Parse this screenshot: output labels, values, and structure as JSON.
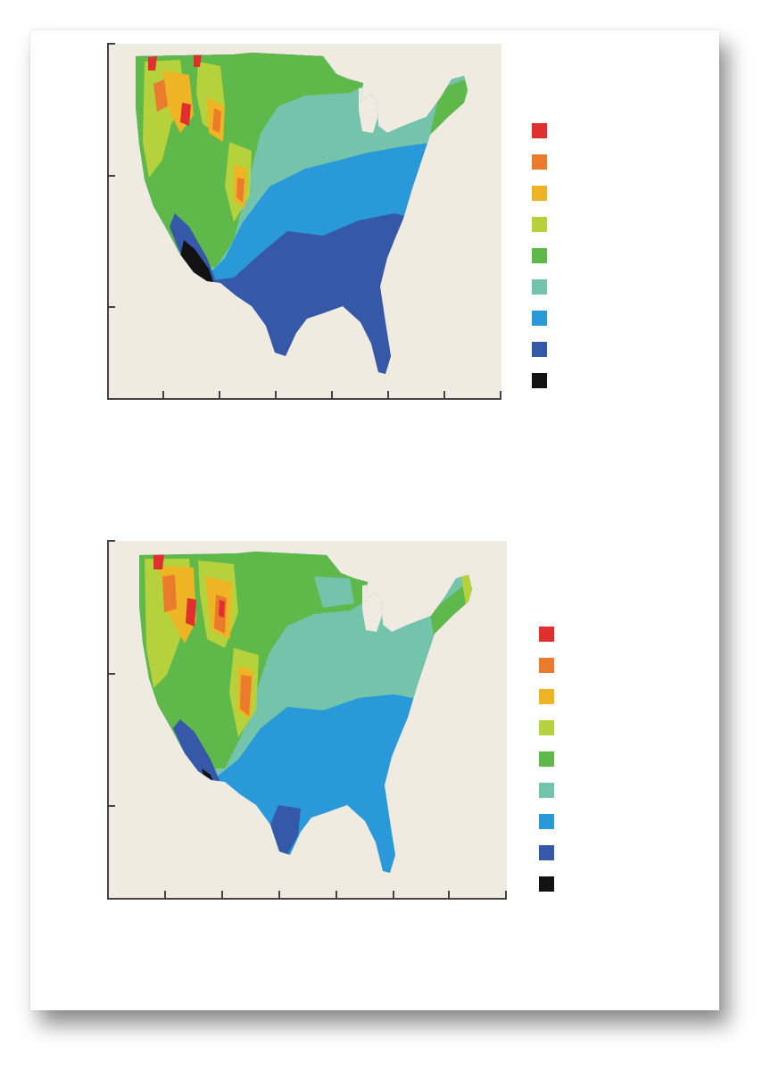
{
  "legend_colors": [
    "#e02f2f",
    "#ea7a2c",
    "#eeb423",
    "#b5d13b",
    "#5fb84a",
    "#73c4aa",
    "#2999d9",
    "#3558a8",
    "#121212"
  ],
  "color_levels": {
    "red": "#e02f2f",
    "orange": "#ea7a2c",
    "yellow": "#eeb423",
    "yellowgreen": "#b5d13b",
    "green": "#5fb84a",
    "teal": "#73c4aa",
    "lightblue": "#2999d9",
    "darkblue": "#3558a8",
    "black": "#121212"
  },
  "background_color": "#efebe1",
  "maps": [
    {
      "name": "upper-map",
      "tick_count_x": 7,
      "tick_count_y": 3
    },
    {
      "name": "lower-map",
      "tick_count_x": 7,
      "tick_count_y": 3
    }
  ]
}
